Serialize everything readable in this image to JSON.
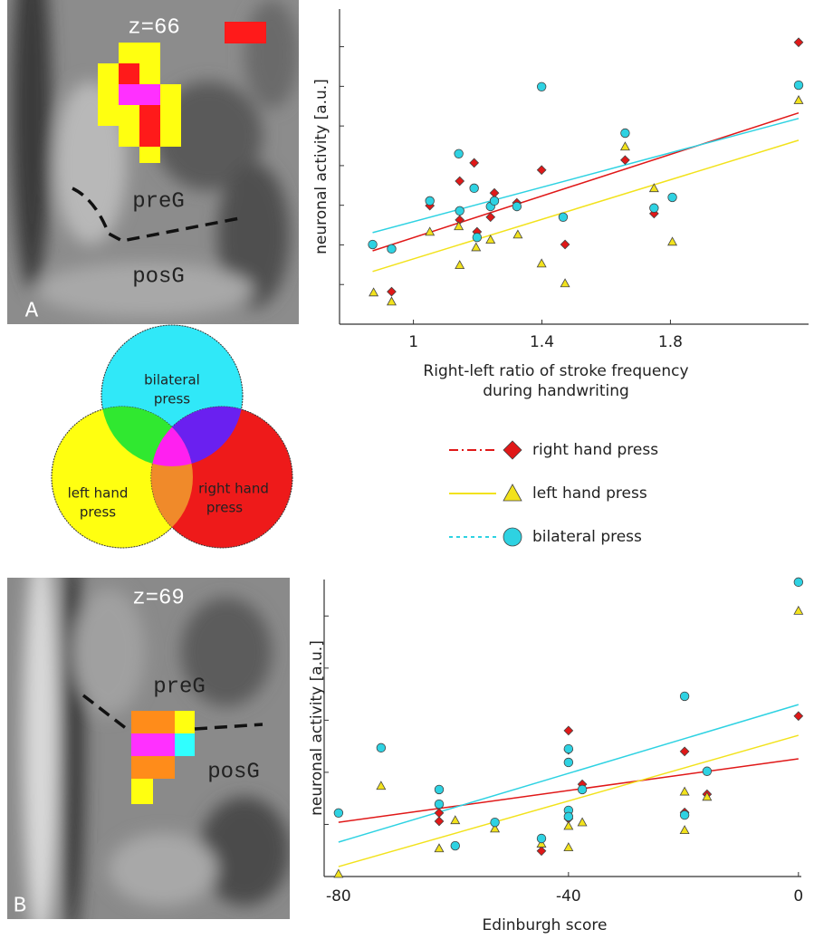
{
  "chart_data": [
    {
      "type": "scatter",
      "y_label": "neuronal activity [a.u.]",
      "x_label": [
        "Right-left ratio of stroke frequency",
        "during handwriting"
      ],
      "xlim": [
        0.77,
        2.23
      ],
      "xticks": [
        1,
        1.4,
        1.8
      ],
      "ylim": [
        0,
        7.95
      ],
      "yticks": [
        1,
        2,
        3,
        4,
        5,
        6,
        7
      ],
      "legend": true,
      "series": [
        {
          "name": "right hand press",
          "color": "#e01818",
          "marker": "diamond",
          "line_style": "dashdot",
          "x": [
            0.932,
            1.051,
            1.144,
            1.189,
            1.252,
            1.24,
            1.198,
            1.144,
            1.399,
            1.472,
            1.659,
            1.749,
            2.199,
            1.322
          ],
          "values": [
            0.82,
            2.99,
            3.61,
            4.07,
            3.31,
            2.7,
            2.33,
            2.63,
            3.89,
            2.01,
            4.14,
            2.79,
            7.11,
            3.06
          ],
          "fit": {
            "x": [
              0.873,
              2.199
            ],
            "y": [
              1.85,
              5.33
            ]
          }
        },
        {
          "name": "left hand press",
          "color": "#f2e21c",
          "marker": "triangle",
          "line_style": "solid",
          "x": [
            0.876,
            0.932,
            1.051,
            1.144,
            1.141,
            1.195,
            1.24,
            1.325,
            1.399,
            1.472,
            1.659,
            1.749,
            1.806,
            2.199
          ],
          "values": [
            0.8,
            0.57,
            2.33,
            1.49,
            2.47,
            1.94,
            2.13,
            2.26,
            1.53,
            1.03,
            4.48,
            3.43,
            2.08,
            5.65
          ],
          "fit": {
            "x": [
              0.873,
              2.199
            ],
            "y": [
              1.33,
              4.64
            ]
          }
        },
        {
          "name": "bilateral press",
          "color": "#2ed2e2",
          "marker": "circle",
          "line_style": "dotted",
          "x": [
            0.873,
            0.932,
            1.051,
            1.144,
            1.141,
            1.189,
            1.198,
            1.24,
            1.252,
            1.322,
            1.399,
            1.466,
            1.659,
            1.749,
            1.806,
            2.199
          ],
          "values": [
            2.01,
            1.9,
            3.11,
            2.86,
            4.3,
            3.43,
            2.19,
            2.97,
            3.11,
            2.97,
            5.99,
            2.7,
            4.82,
            2.93,
            3.2,
            6.03
          ],
          "fit": {
            "x": [
              0.873,
              2.199
            ],
            "y": [
              2.31,
              5.19
            ]
          }
        }
      ]
    },
    {
      "type": "scatter",
      "y_label": "neuronal activity [a.u.]",
      "x_label": [
        "Edinburgh score"
      ],
      "xlim": [
        -82.5,
        0.5
      ],
      "xticks": [
        -80,
        -40,
        0
      ],
      "ylim": [
        0,
        5.7
      ],
      "yticks": [
        1,
        2,
        3,
        4,
        5
      ],
      "legend": false,
      "series": [
        {
          "name": "right hand press",
          "color": "#e01818",
          "marker": "diamond",
          "line_style": "solid",
          "x": [
            -62.5,
            -62.5,
            -44.7,
            -40,
            -40,
            -40,
            -37.6,
            -19.8,
            -19.8,
            -15.9,
            0
          ],
          "values": [
            1.22,
            1.06,
            0.49,
            2.8,
            2.43,
            1.11,
            1.77,
            2.4,
            1.23,
            1.58,
            3.08
          ],
          "fit": {
            "x": [
              -80,
              0
            ],
            "y": [
              1.04,
              2.26
            ]
          }
        },
        {
          "name": "left hand press",
          "color": "#f2e21c",
          "marker": "triangle",
          "line_style": "solid",
          "x": [
            -80,
            -72.6,
            -62.5,
            -59.7,
            -52.8,
            -44.7,
            -40,
            -40,
            -37.6,
            -19.8,
            -19.8,
            -15.9,
            0
          ],
          "values": [
            0.05,
            1.74,
            0.54,
            1.08,
            0.92,
            0.63,
            0.56,
            0.97,
            1.04,
            0.89,
            1.63,
            1.53,
            5.1
          ],
          "fit": {
            "x": [
              -80,
              0
            ],
            "y": [
              0.19,
              2.71
            ]
          }
        },
        {
          "name": "bilateral press",
          "color": "#2ed2e2",
          "marker": "circle",
          "line_style": "solid",
          "x": [
            -80,
            -72.6,
            -62.5,
            -62.5,
            -59.7,
            -52.8,
            -44.7,
            -40,
            -40,
            -40,
            -40,
            -37.6,
            -19.8,
            -19.8,
            -15.9,
            0
          ],
          "values": [
            1.22,
            2.47,
            1.67,
            1.39,
            0.59,
            1.04,
            0.73,
            2.45,
            2.19,
            1.27,
            1.15,
            1.67,
            3.46,
            1.18,
            2.02,
            5.65
          ],
          "fit": {
            "x": [
              -80,
              0
            ],
            "y": [
              0.66,
              3.3
            ]
          }
        }
      ]
    }
  ],
  "panels": [
    {
      "label": "A",
      "slice": "z=66",
      "regions": [
        "preG",
        "posG"
      ]
    },
    {
      "label": "B",
      "slice": "z=69",
      "regions": [
        "preG",
        "posG"
      ]
    }
  ],
  "venn": {
    "sets": [
      [
        "bilateral",
        "press"
      ],
      [
        "left hand",
        "press"
      ],
      [
        "right hand",
        "press"
      ]
    ]
  }
}
